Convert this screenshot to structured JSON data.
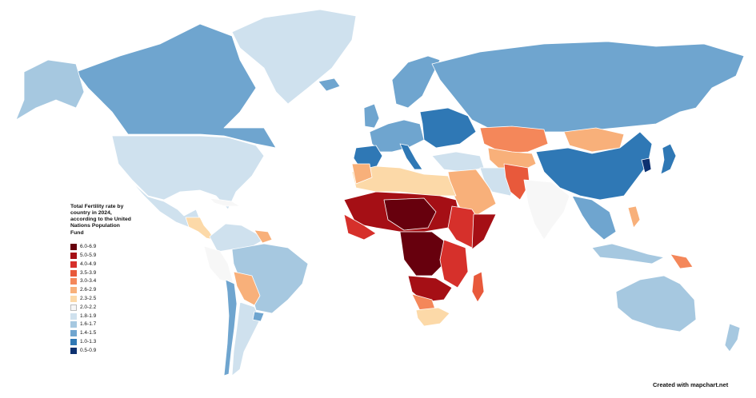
{
  "legend": {
    "title": "Total Fertility rate by country in 2024, according to the United Nations Population Fund",
    "items": [
      {
        "label": "6.0-6.9",
        "color": "#67000d"
      },
      {
        "label": "5.0-5.9",
        "color": "#a50f15"
      },
      {
        "label": "4.0-4.9",
        "color": "#d6302b"
      },
      {
        "label": "3.5-3.9",
        "color": "#e8593b"
      },
      {
        "label": "3.0-3.4",
        "color": "#f4875a"
      },
      {
        "label": "2.6-2.9",
        "color": "#f8b07a"
      },
      {
        "label": "2.3-2.5",
        "color": "#fcd9a8"
      },
      {
        "label": "2.0-2.2",
        "color": "#f7f7f7"
      },
      {
        "label": "1.8-1.9",
        "color": "#cfe1ee"
      },
      {
        "label": "1.6-1.7",
        "color": "#a6c8e0"
      },
      {
        "label": "1.4-1.5",
        "color": "#6fa5cf"
      },
      {
        "label": "1.0-1.3",
        "color": "#2f78b5"
      },
      {
        "label": "0.5-0.9",
        "color": "#0d3170"
      }
    ]
  },
  "credit": "Created with mapchart.net"
}
